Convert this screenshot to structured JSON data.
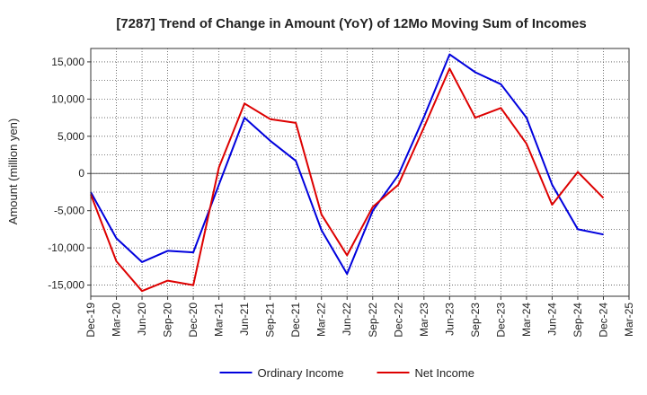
{
  "chart_data": {
    "type": "line",
    "title": "[7287]  Trend of Change in Amount (YoY) of 12Mo Moving Sum of Incomes",
    "xlabel": "",
    "ylabel": "Amount (million yen)",
    "categories": [
      "Dec-19",
      "Mar-20",
      "Jun-20",
      "Sep-20",
      "Dec-20",
      "Mar-21",
      "Jun-21",
      "Sep-21",
      "Dec-21",
      "Mar-22",
      "Jun-22",
      "Sep-22",
      "Dec-22",
      "Mar-23",
      "Jun-23",
      "Sep-23",
      "Dec-23",
      "Mar-24",
      "Jun-24",
      "Sep-24",
      "Dec-24",
      "Mar-25"
    ],
    "ylim": [
      -16500,
      16800
    ],
    "yticks": [
      -15000,
      -10000,
      -5000,
      0,
      5000,
      10000,
      15000
    ],
    "ytick_labels": [
      "-15,000",
      "-10,000",
      "-5,000",
      "0",
      "5,000",
      "10,000",
      "15,000"
    ],
    "grid": true,
    "legend_position": "bottom-center",
    "series": [
      {
        "name": "Ordinary Income",
        "color": "#0000dd",
        "values": [
          -2500,
          -8700,
          -11900,
          -10400,
          -10600,
          -1500,
          7500,
          4400,
          1700,
          -7600,
          -13500,
          -5000,
          -200,
          7600,
          16000,
          13600,
          12000,
          7500,
          -1500,
          -7500,
          -8200,
          null
        ]
      },
      {
        "name": "Net Income",
        "color": "#dd0000",
        "values": [
          -2800,
          -11800,
          -15800,
          -14400,
          -15000,
          800,
          9400,
          7300,
          6800,
          -5500,
          -11000,
          -4500,
          -1500,
          6200,
          14100,
          7500,
          8800,
          4000,
          -4200,
          200,
          -3300,
          null
        ]
      }
    ]
  }
}
